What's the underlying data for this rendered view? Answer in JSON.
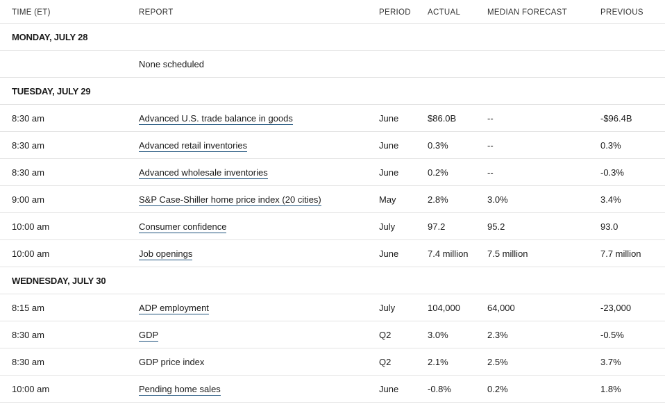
{
  "headers": {
    "time": "TIME (ET)",
    "report": "REPORT",
    "period": "PERIOD",
    "actual": "ACTUAL",
    "median": "MEDIAN FORECAST",
    "previous": "PREVIOUS"
  },
  "days": [
    {
      "label": "MONDAY, JULY 28",
      "rows": [
        {
          "time": "",
          "report": "None scheduled",
          "link": false,
          "period": "",
          "actual": "",
          "median": "",
          "previous": ""
        }
      ]
    },
    {
      "label": "TUESDAY, JULY 29",
      "rows": [
        {
          "time": "8:30 am",
          "report": "Advanced U.S. trade balance in goods",
          "link": true,
          "period": "June",
          "actual": "$86.0B",
          "median": "--",
          "previous": "-$96.4B"
        },
        {
          "time": "8:30 am",
          "report": "Advanced retail inventories ",
          "link": true,
          "period": "June",
          "actual": "0.3%",
          "median": "--",
          "previous": "0.3%"
        },
        {
          "time": "8:30 am",
          "report": "Advanced wholesale inventories",
          "link": true,
          "period": "June",
          "actual": "0.2%",
          "median": "--",
          "previous": "-0.3%"
        },
        {
          "time": "9:00 am",
          "report": "S&P Case-Shiller home price index (20 cities)",
          "link": true,
          "period": "May",
          "actual": "2.8%",
          "median": "3.0%",
          "previous": "3.4%"
        },
        {
          "time": "10:00 am",
          "report": "Consumer confidence",
          "link": true,
          "period": "July",
          "actual": "97.2",
          "median": "95.2",
          "previous": "93.0"
        },
        {
          "time": "10:00 am",
          "report": "Job openings",
          "link": true,
          "period": "June",
          "actual": "7.4 million",
          "median": "7.5 million",
          "previous": "7.7 million"
        }
      ]
    },
    {
      "label": "WEDNESDAY, JULY 30",
      "rows": [
        {
          "time": "8:15 am",
          "report": "ADP employment",
          "link": true,
          "period": "July",
          "actual": "104,000",
          "median": "64,000",
          "previous": "-23,000"
        },
        {
          "time": "8:30 am",
          "report": "GDP",
          "link": true,
          "period": "Q2",
          "actual": "3.0%",
          "median": "2.3%",
          "previous": "-0.5%"
        },
        {
          "time": "8:30 am",
          "report": "GDP price index",
          "link": false,
          "period": "Q2",
          "actual": "2.1%",
          "median": "2.5%",
          "previous": "3.7%"
        },
        {
          "time": "10:00 am",
          "report": "Pending home sales",
          "link": true,
          "period": "June",
          "actual": "-0.8%",
          "median": "0.2%",
          "previous": "1.8%"
        }
      ]
    }
  ],
  "colors": {
    "link_underline": "#1a4f7a",
    "row_divider": "#e3e3e3"
  }
}
